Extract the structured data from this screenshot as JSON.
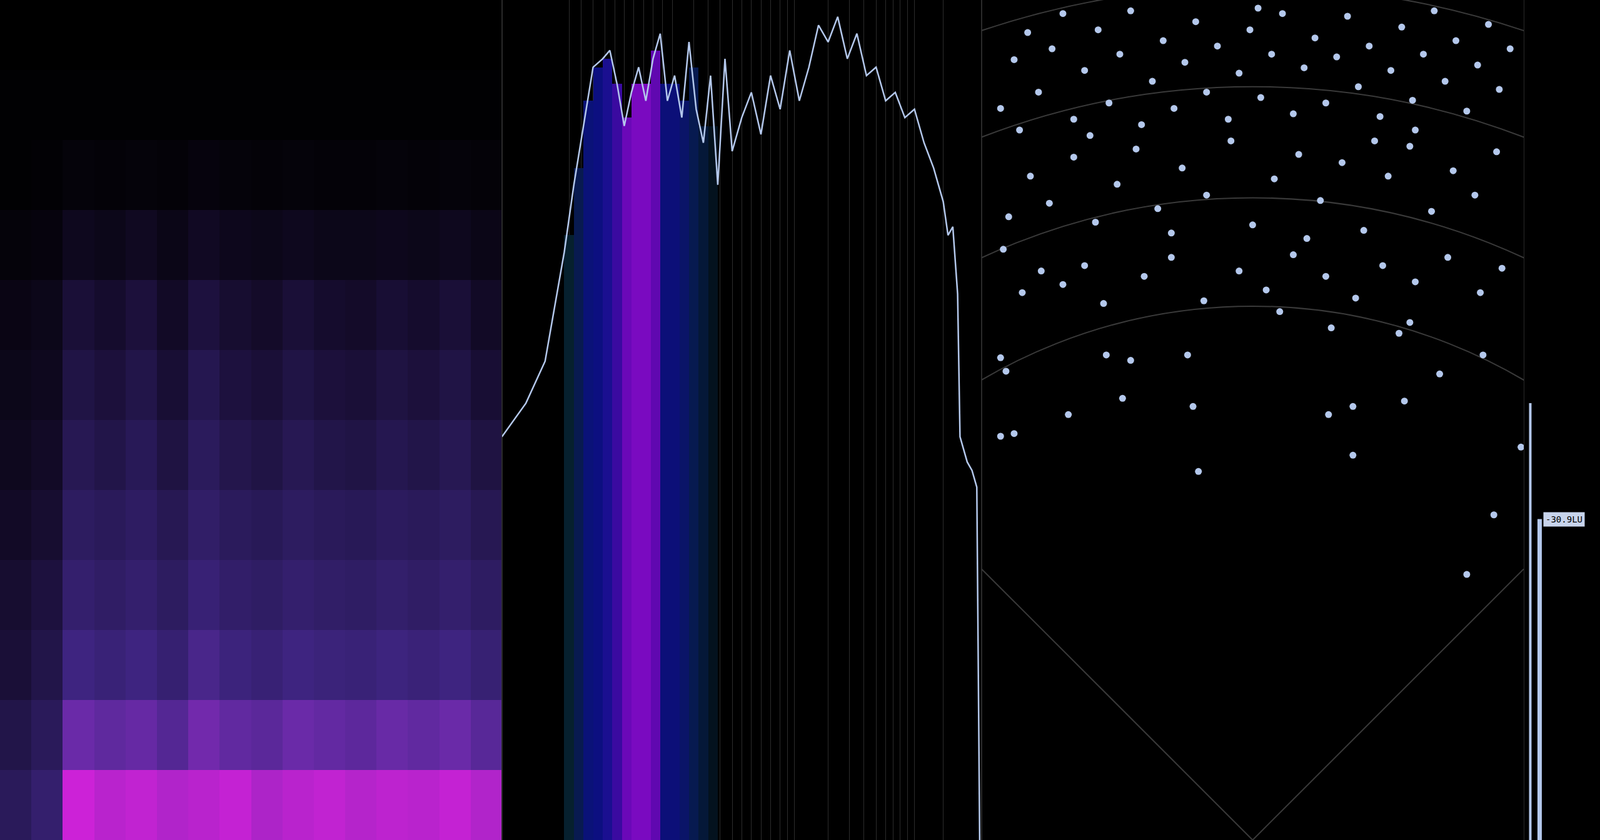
{
  "chart_data": [
    {
      "type": "heatmap",
      "xlim": [
        -0.5,
        15.5
      ],
      "ylim": [
        -0.5,
        11.5
      ],
      "zlim": [
        0,
        1
      ],
      "tick_labels": false,
      "cells": [
        [
          0.3,
          0.4,
          0.95,
          0.9,
          0.92,
          0.88,
          0.9,
          0.93,
          0.87,
          0.9,
          0.92,
          0.89,
          0.91,
          0.9,
          0.93,
          0.88
        ],
        [
          0.25,
          0.3,
          0.7,
          0.65,
          0.68,
          0.6,
          0.72,
          0.66,
          0.63,
          0.7,
          0.67,
          0.64,
          0.69,
          0.66,
          0.7,
          0.62
        ],
        [
          0.2,
          0.25,
          0.5,
          0.45,
          0.5,
          0.42,
          0.55,
          0.48,
          0.44,
          0.5,
          0.47,
          0.45,
          0.49,
          0.46,
          0.5,
          0.43
        ],
        [
          0.18,
          0.22,
          0.4,
          0.36,
          0.4,
          0.33,
          0.44,
          0.38,
          0.35,
          0.4,
          0.37,
          0.35,
          0.39,
          0.36,
          0.4,
          0.34
        ],
        [
          0.15,
          0.18,
          0.33,
          0.3,
          0.34,
          0.28,
          0.37,
          0.31,
          0.29,
          0.33,
          0.3,
          0.29,
          0.32,
          0.3,
          0.33,
          0.28
        ],
        [
          0.12,
          0.15,
          0.28,
          0.25,
          0.29,
          0.23,
          0.31,
          0.26,
          0.24,
          0.28,
          0.25,
          0.24,
          0.27,
          0.25,
          0.28,
          0.23
        ],
        [
          0.1,
          0.12,
          0.24,
          0.21,
          0.25,
          0.19,
          0.27,
          0.22,
          0.2,
          0.24,
          0.21,
          0.2,
          0.23,
          0.21,
          0.24,
          0.19
        ],
        [
          0.08,
          0.1,
          0.2,
          0.17,
          0.21,
          0.15,
          0.22,
          0.18,
          0.16,
          0.2,
          0.17,
          0.16,
          0.19,
          0.17,
          0.2,
          0.15
        ],
        [
          0.04,
          0.05,
          0.12,
          0.1,
          0.13,
          0.09,
          0.14,
          0.11,
          0.1,
          0.12,
          0.1,
          0.1,
          0.11,
          0.1,
          0.12,
          0.09
        ],
        [
          0.01,
          0.02,
          0.04,
          0.03,
          0.04,
          0.03,
          0.05,
          0.04,
          0.03,
          0.04,
          0.03,
          0.03,
          0.04,
          0.03,
          0.04,
          0.03
        ],
        [
          0.01,
          0.01,
          0.01,
          0.01,
          0.01,
          0.01,
          0.01,
          0.01,
          0.01,
          0.01,
          0.01,
          0.01,
          0.01,
          0.01,
          0.01,
          0.01
        ],
        [
          0,
          0,
          0,
          0,
          0,
          0,
          0,
          0,
          0,
          0,
          0,
          0,
          0,
          0,
          0,
          0
        ]
      ]
    },
    {
      "type": "line",
      "xlim": [
        0,
        100
      ],
      "ylim": [
        0,
        100
      ],
      "grid": true,
      "tick_labels": false,
      "xticks": [
        14,
        16.5,
        19,
        21.5,
        23.5,
        25.5,
        27.5,
        29.5,
        31.5,
        33.5,
        35.5,
        40,
        43,
        45.5,
        48,
        50,
        52,
        54,
        56,
        58,
        59.5,
        61,
        68,
        72.5,
        75.5,
        78,
        80,
        81.5,
        83,
        84.5,
        86,
        92
      ],
      "series": [
        {
          "type": "bar",
          "x": [
            14,
            16,
            18,
            20,
            22,
            24,
            26,
            28,
            30,
            32,
            34,
            36,
            38,
            40,
            42,
            44
          ],
          "values": [
            72,
            80,
            88,
            92,
            93,
            90,
            86,
            90,
            90,
            94,
            90,
            90,
            88,
            92,
            85,
            85
          ],
          "colors": [
            "#06202e",
            "#081a50",
            "#0a1278",
            "#0c0f80",
            "#1a0f90",
            "#3a0aa0",
            "#6a08b8",
            "#7a0ac0",
            "#7a0ac0",
            "#6008b0",
            "#0c0f78",
            "#0c0f78",
            "#0a1468",
            "#071a50",
            "#051838",
            "#04121e"
          ]
        },
        {
          "type": "line",
          "color": "#b4c8ec",
          "x": [
            0,
            5,
            9,
            13,
            15,
            17,
            19,
            21,
            22.5,
            24,
            25.5,
            27,
            28.5,
            30,
            31.5,
            33,
            34.5,
            36,
            37.5,
            39,
            40.5,
            42,
            43.5,
            45,
            46.5,
            48,
            50,
            52,
            54,
            56,
            58,
            60,
            62,
            64,
            66,
            68,
            70,
            72,
            74,
            76,
            78,
            80,
            82,
            84,
            86,
            88,
            90,
            92,
            93,
            94,
            95,
            95.5,
            96,
            97,
            98,
            99,
            99.6
          ],
          "values": [
            48,
            52,
            57,
            70,
            78,
            85,
            92,
            93,
            94,
            90,
            85,
            89,
            92,
            88,
            93,
            96,
            88,
            91,
            86,
            95,
            87,
            83,
            91,
            78,
            93,
            82,
            86,
            89,
            84,
            91,
            87,
            94,
            88,
            92,
            97,
            95,
            98,
            93,
            96,
            91,
            92,
            88,
            89,
            86,
            87,
            83,
            80,
            76,
            72,
            73,
            65,
            48,
            47,
            45,
            44,
            42,
            0
          ]
        }
      ]
    },
    {
      "type": "scatter",
      "color": "#b4c8ec",
      "xlim": [
        -1,
        1
      ],
      "ylim": [
        0,
        3.1
      ],
      "tick_labels": false,
      "x": [
        -0.2,
        -0.68,
        -0.48,
        -0.22,
        0.28,
        0.37,
        0.37,
        0.56,
        0.79,
        0.89,
        0.85,
        0.69,
        -0.93,
        -0.88,
        -0.91,
        -0.93,
        -0.54,
        -0.45,
        -0.24,
        0.54,
        0.58,
        0.29,
        0.99,
        -0.85,
        -0.78,
        -0.7,
        -0.62,
        -0.55,
        -0.4,
        -0.3,
        -0.18,
        -0.05,
        0.05,
        0.15,
        0.27,
        0.38,
        0.48,
        0.6,
        0.72,
        0.84,
        0.92,
        -0.92,
        0.1,
        -0.9,
        -0.82,
        -0.75,
        -0.66,
        -0.58,
        -0.5,
        -0.43,
        -0.35,
        -0.26,
        -0.17,
        -0.08,
        0.0,
        0.08,
        0.17,
        0.25,
        0.33,
        0.41,
        0.5,
        0.58,
        0.66,
        0.74,
        0.82,
        0.9,
        -0.6,
        0.45,
        0.2,
        -0.3,
        -0.93,
        -0.88,
        -0.83,
        -0.79,
        -0.74,
        -0.7,
        -0.66,
        -0.62,
        -0.57,
        -0.53,
        -0.49,
        -0.45,
        -0.41,
        -0.37,
        -0.33,
        -0.29,
        -0.25,
        -0.21,
        -0.17,
        -0.13,
        -0.09,
        -0.05,
        -0.01,
        0.03,
        0.07,
        0.11,
        0.15,
        0.19,
        0.23,
        0.27,
        0.31,
        0.35,
        0.39,
        0.43,
        0.47,
        0.51,
        0.55,
        0.59,
        0.63,
        0.67,
        0.71,
        0.75,
        0.79,
        0.83,
        0.87,
        0.91,
        0.95,
        -0.86,
        0.02,
        0.6
      ],
      "values": [
        1.36,
        1.57,
        1.63,
        1.6,
        1.57,
        1.6,
        1.42,
        1.62,
        0.98,
        1.2,
        1.79,
        1.72,
        1.49,
        1.5,
        1.73,
        1.78,
        1.79,
        1.77,
        1.79,
        1.87,
        1.91,
        1.89,
        1.45,
        2.02,
        2.1,
        2.05,
        2.12,
        1.98,
        2.08,
        2.15,
        1.99,
        2.1,
        2.03,
        2.16,
        2.08,
        2.0,
        2.12,
        2.06,
        2.15,
        2.02,
        2.11,
        2.18,
        1.95,
        2.3,
        2.45,
        2.35,
        2.52,
        2.28,
        2.42,
        2.55,
        2.33,
        2.48,
        2.38,
        2.58,
        2.27,
        2.44,
        2.53,
        2.36,
        2.5,
        2.25,
        2.45,
        2.56,
        2.32,
        2.47,
        2.38,
        2.54,
        2.6,
        2.58,
        2.22,
        2.24,
        2.7,
        2.88,
        2.98,
        2.76,
        2.92,
        3.05,
        2.66,
        2.84,
        2.99,
        2.72,
        2.9,
        3.06,
        2.64,
        2.8,
        2.95,
        2.7,
        2.87,
        3.02,
        2.76,
        2.93,
        2.66,
        2.83,
        2.99,
        2.74,
        2.9,
        3.05,
        2.68,
        2.85,
        2.96,
        2.72,
        2.89,
        3.04,
        2.78,
        2.93,
        2.67,
        2.84,
        3.0,
        2.73,
        2.9,
        3.06,
        2.8,
        2.95,
        2.69,
        2.86,
        3.01,
        2.77,
        2.92,
        2.62,
        3.07,
        2.62
      ]
    },
    {
      "type": "bar",
      "color": "#b4c8ec",
      "ylim": [
        -50,
        0
      ],
      "tick_labels": false,
      "data_labels": true,
      "series": [
        {
          "values": [
            -24.0
          ]
        },
        {
          "values": [
            -30.9
          ],
          "value_labels": [
            "-30.9LU"
          ]
        }
      ]
    }
  ]
}
